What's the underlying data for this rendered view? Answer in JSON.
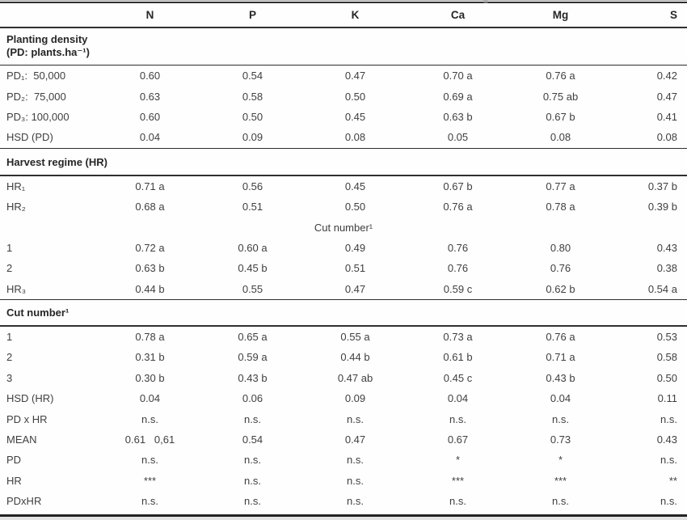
{
  "table": {
    "columns": [
      "",
      "N",
      "P",
      "K",
      "Ca",
      "Mg",
      "S"
    ],
    "rows": [
      {
        "type": "section",
        "style": "tall",
        "lines": [
          "Planting density",
          "(PD: plants.ha⁻¹)"
        ]
      },
      {
        "type": "rule"
      },
      {
        "type": "data",
        "label": "PD₁:  50,000",
        "cells": [
          "0.60",
          "0.54",
          "0.47",
          "0.70 a",
          "0.76 a",
          "0.42"
        ]
      },
      {
        "type": "data",
        "label": "PD₂:  75,000",
        "cells": [
          "0.63",
          "0.58",
          "0.50",
          "0.69 a",
          "0.75 ab",
          "0.47"
        ]
      },
      {
        "type": "data",
        "label": "PD₃: 100,000",
        "cells": [
          "0.60",
          "0.50",
          "0.45",
          "0.63 b",
          "0.67 b",
          "0.41"
        ]
      },
      {
        "type": "data",
        "label": "HSD (PD)",
        "cells": [
          "0.04",
          "0.09",
          "0.08",
          "0.05",
          "0.08",
          "0.08"
        ]
      },
      {
        "type": "rule"
      },
      {
        "type": "section",
        "style": "short",
        "lines": [
          "Harvest regime (HR)"
        ]
      },
      {
        "type": "rule"
      },
      {
        "type": "data",
        "label": "HR₁",
        "cells": [
          "0.71 a",
          "0.56",
          "0.45",
          "0.67 b",
          "0.77 a",
          "0.37 b"
        ]
      },
      {
        "type": "data",
        "label": "HR₂",
        "cells": [
          "0.68 a",
          "0.51",
          "0.50",
          "0.76 a",
          "0.78 a",
          "0.39 b"
        ]
      },
      {
        "type": "center",
        "text": "Cut number¹"
      },
      {
        "type": "data",
        "label": "1",
        "cells": [
          "0.72 a",
          "0.60 a",
          "0.49",
          "0.76",
          "0.80",
          "0.43"
        ]
      },
      {
        "type": "data",
        "label": "2",
        "cells": [
          "0.63 b",
          "0.45 b",
          "0.51",
          "0.76",
          "0.76",
          "0.38"
        ]
      },
      {
        "type": "data",
        "label": "HR₃",
        "cells": [
          "0.44 b",
          "0.55",
          "0.47",
          "0.59 c",
          "0.62 b",
          "0.54 a"
        ]
      },
      {
        "type": "rule"
      },
      {
        "type": "section",
        "style": "short2",
        "lines": [
          "Cut number¹"
        ]
      },
      {
        "type": "rule"
      },
      {
        "type": "data",
        "label": "1",
        "cells": [
          "0.78 a",
          "0.65 a",
          "0.55 a",
          "0.73 a",
          "0.76 a",
          "0.53"
        ]
      },
      {
        "type": "data",
        "label": "2",
        "cells": [
          "0.31 b",
          "0.59 a",
          "0.44 b",
          "0.61 b",
          "0.71 a",
          "0.58"
        ]
      },
      {
        "type": "data",
        "label": "3",
        "cells": [
          "0.30 b",
          "0.43 b",
          "0.47 ab",
          "0.45 c",
          "0.43 b",
          "0.50"
        ]
      },
      {
        "type": "data",
        "label": "HSD (HR)",
        "cells": [
          "0.04",
          "0.06",
          "0.09",
          "0.04",
          "0.04",
          "0.11"
        ]
      },
      {
        "type": "data",
        "label": "PD x HR",
        "cells": [
          "n.s.",
          "n.s.",
          "n.s.",
          "n.s.",
          "n.s.",
          "n.s."
        ]
      },
      {
        "type": "data",
        "label": "MEAN",
        "cells": [
          "0.61   0,61",
          "0.54",
          "0.47",
          "0.67",
          "0.73",
          "0.43"
        ]
      },
      {
        "type": "data",
        "label": "PD",
        "cells": [
          "n.s.",
          "n.s.",
          "n.s.",
          "*",
          "*",
          "n.s."
        ]
      },
      {
        "type": "data",
        "label": "HR",
        "cells": [
          "***",
          "n.s.",
          "n.s.",
          "***",
          "***",
          "**"
        ]
      },
      {
        "type": "data",
        "label": "PDxHR",
        "cells": [
          "n.s.",
          "n.s.",
          "n.s.",
          "n.s.",
          "n.s.",
          "n.s."
        ]
      }
    ]
  },
  "colors": {
    "text": "#3f3f3f",
    "bold_text": "#262626",
    "rule": "#2f2f2f",
    "background": "#ffffff"
  }
}
